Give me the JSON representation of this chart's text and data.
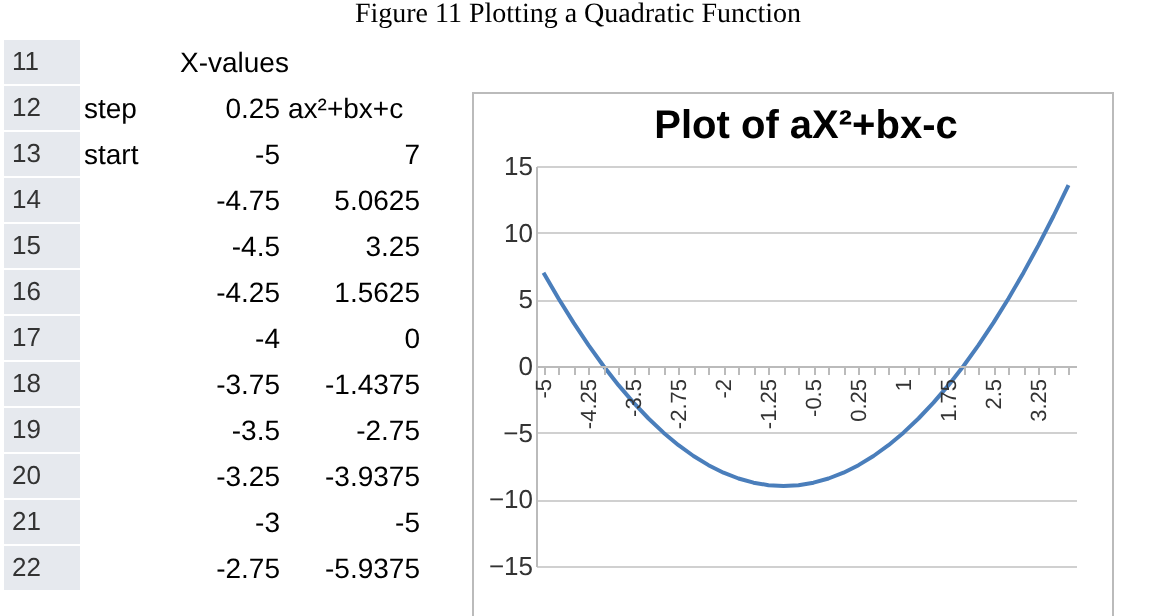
{
  "chart_data": {
    "type": "line",
    "title": "Plot of aX²+bx-c",
    "annotations": [
      "Figure 11 Plotting a Quadratic Function",
      "X-values",
      "step",
      "0.25",
      "ax²+bx+c",
      "start",
      "11",
      "12",
      "13",
      "14",
      "15",
      "16",
      "17",
      "18",
      "19",
      "20",
      "21",
      "22",
      "-5",
      "7",
      "-4.75",
      "5.0625",
      "-4.5",
      "3.25",
      "-4.25",
      "1.5625",
      "-4",
      "0",
      "-3.75",
      "-1.4375",
      "-3.5",
      "-2.75",
      "-3.25",
      "-3.9375",
      "-3",
      "-5",
      "-2.75",
      "-5.9375"
    ],
    "x": [
      -5,
      -4.75,
      -4.5,
      -4.25,
      -4,
      -3.75,
      -3.5,
      -3.25,
      -3,
      -2.75,
      -2.5,
      -2.25,
      -2,
      -1.75,
      -1.5,
      -1.25,
      -1,
      -0.75,
      -0.5,
      -0.25,
      0,
      0.25,
      0.5,
      0.75,
      1,
      1.25,
      1.5,
      1.75,
      2,
      2.25,
      2.5,
      2.75,
      3,
      3.25,
      3.5,
      3.75
    ],
    "series": [
      {
        "color": "#4a7ebb",
        "values": [
          7,
          5.0625,
          3.25,
          1.5625,
          0,
          -1.4375,
          -2.75,
          -3.9375,
          -5,
          -5.9375,
          -6.75,
          -7.4375,
          -8,
          -8.4375,
          -8.75,
          -8.9375,
          -9,
          -8.9375,
          -8.75,
          -8.4375,
          -8,
          -7.4375,
          -6.75,
          -5.9375,
          -5,
          -3.9375,
          -2.75,
          -1.4375,
          0,
          1.5625,
          3.25,
          5.0625,
          7,
          9.0625,
          11.25,
          13.5625
        ]
      }
    ],
    "xlim": [
      -5.125,
      3.875
    ],
    "xticks": [
      -5,
      {
        "value": -4.75,
        "label": null
      },
      {
        "value": -4.5,
        "label": null
      },
      -4.25,
      {
        "value": -4,
        "label": null
      },
      {
        "value": -3.75,
        "label": null
      },
      -3.5,
      {
        "value": -3.25,
        "label": null
      },
      {
        "value": -3,
        "label": null
      },
      -2.75,
      {
        "value": -2.5,
        "label": null
      },
      {
        "value": -2.25,
        "label": null
      },
      -2,
      {
        "value": -1.75,
        "label": null
      },
      {
        "value": -1.5,
        "label": null
      },
      -1.25,
      {
        "value": -1,
        "label": null
      },
      {
        "value": -0.75,
        "label": null
      },
      -0.5,
      {
        "value": -0.25,
        "label": null
      },
      {
        "value": 0,
        "label": null
      },
      0.25,
      {
        "value": 0.5,
        "label": null
      },
      {
        "value": 0.75,
        "label": null
      },
      1,
      {
        "value": 1.25,
        "label": null
      },
      {
        "value": 1.5,
        "label": null
      },
      1.75,
      {
        "value": 2,
        "label": null
      },
      {
        "value": 2.25,
        "label": null
      },
      2.5,
      {
        "value": 2.75,
        "label": null
      },
      {
        "value": 3,
        "label": null
      },
      3.25,
      {
        "value": 3.5,
        "label": null
      },
      {
        "value": 3.75,
        "label": null
      }
    ],
    "ylim": [
      -15,
      15
    ],
    "yticks": [
      -15,
      -10,
      -5,
      0,
      5,
      10,
      15
    ],
    "grid": "y",
    "marker": "none",
    "line_style": "solid"
  }
}
